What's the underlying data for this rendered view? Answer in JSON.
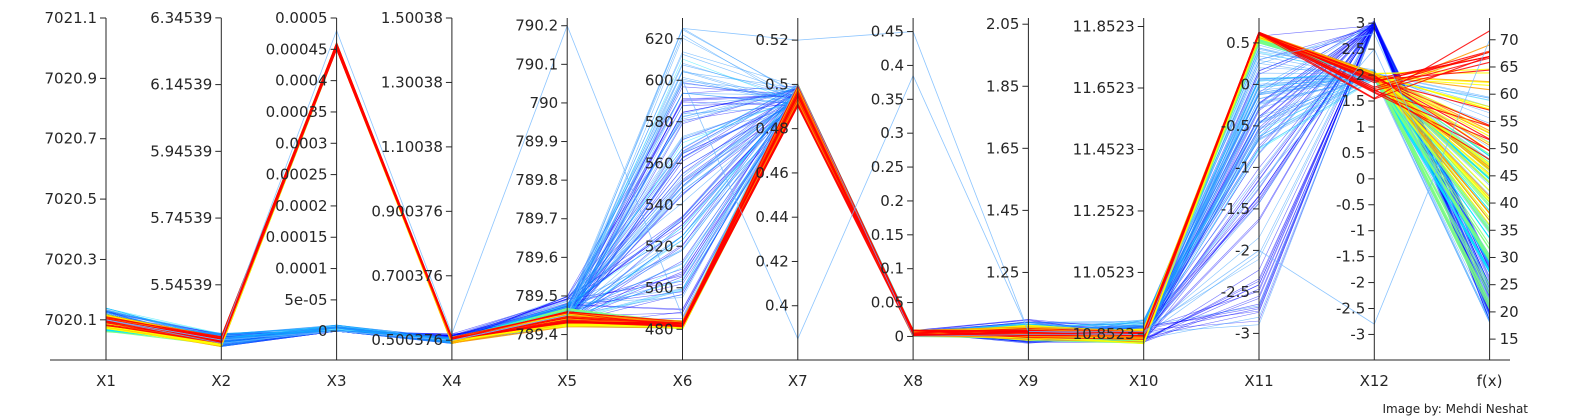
{
  "chart_data": {
    "type": "parallel-coordinates",
    "title": "",
    "axes": [
      {
        "name": "X1",
        "ticks": [
          "7020.1",
          "7020.3",
          "7020.5",
          "7020.7",
          "7020.9",
          "7021.1"
        ],
        "tick_values": [
          7020.1,
          7020.3,
          7020.5,
          7020.7,
          7020.9,
          7021.1
        ],
        "range": [
          7020.0,
          7021.1
        ]
      },
      {
        "name": "X2",
        "ticks": [
          "5.54539",
          "5.74539",
          "5.94539",
          "6.14539",
          "6.34539"
        ],
        "tick_values": [
          5.54539,
          5.74539,
          5.94539,
          6.14539,
          6.34539
        ],
        "range": [
          5.35,
          6.345
        ]
      },
      {
        "name": "X3",
        "ticks": [
          "0",
          "5e-05",
          "0.0001",
          "0.00015",
          "0.0002",
          "0.00025",
          "0.0003",
          "0.00035",
          "0.0004",
          "0.00045",
          "0.0005"
        ],
        "tick_values": [
          0,
          5e-05,
          0.0001,
          0.00015,
          0.0002,
          0.00025,
          0.0003,
          0.00035,
          0.0004,
          0.00045,
          0.0005
        ],
        "range": [
          -3e-05,
          0.0005
        ]
      },
      {
        "name": "X4",
        "ticks": [
          "0.500376",
          "0.700376",
          "0.900376",
          "1.10038",
          "1.30038",
          "1.50038"
        ],
        "tick_values": [
          0.500376,
          0.700376,
          0.900376,
          1.10038,
          1.30038,
          1.50038
        ],
        "range": [
          0.47,
          1.50038
        ]
      },
      {
        "name": "X5",
        "ticks": [
          "789.4",
          "789.5",
          "789.6",
          "789.7",
          "789.8",
          "789.9",
          "790",
          "790.1",
          "790.2"
        ],
        "tick_values": [
          789.4,
          789.5,
          789.6,
          789.7,
          789.8,
          789.9,
          790,
          790.1,
          790.2
        ],
        "range": [
          789.36,
          790.22
        ]
      },
      {
        "name": "X6",
        "ticks": [
          "480",
          "500",
          "520",
          "540",
          "560",
          "580",
          "600",
          "620"
        ],
        "tick_values": [
          480,
          500,
          520,
          540,
          560,
          580,
          600,
          620
        ],
        "range": [
          470,
          630
        ]
      },
      {
        "name": "X7",
        "ticks": [
          "0.4",
          "0.42",
          "0.44",
          "0.46",
          "0.48",
          "0.5",
          "0.52"
        ],
        "tick_values": [
          0.4,
          0.42,
          0.44,
          0.46,
          0.48,
          0.5,
          0.52
        ],
        "range": [
          0.38,
          0.53
        ]
      },
      {
        "name": "X8",
        "ticks": [
          "0",
          "0.05",
          "0.1",
          "0.15",
          "0.2",
          "0.25",
          "0.3",
          "0.35",
          "0.4",
          "0.45"
        ],
        "tick_values": [
          0,
          0.05,
          0.1,
          0.15,
          0.2,
          0.25,
          0.3,
          0.35,
          0.4,
          0.45
        ],
        "range": [
          -0.02,
          0.47
        ]
      },
      {
        "name": "X9",
        "ticks": [
          "1.25",
          "1.45",
          "1.65",
          "1.85",
          "2.05"
        ],
        "tick_values": [
          1.25,
          1.45,
          1.65,
          1.85,
          2.05
        ],
        "range": [
          1.0,
          2.07
        ]
      },
      {
        "name": "X10",
        "ticks": [
          "10.8523",
          "11.0523",
          "11.2523",
          "11.4523",
          "11.6523",
          "11.8523"
        ],
        "tick_values": [
          10.8523,
          11.0523,
          11.2523,
          11.4523,
          11.6523,
          11.8523
        ],
        "range": [
          10.8,
          11.88
        ]
      },
      {
        "name": "X11",
        "ticks": [
          "-3",
          "-2.5",
          "-2",
          "-1.5",
          "-1",
          "-0.5",
          "0",
          "0.5"
        ],
        "tick_values": [
          -3,
          -2.5,
          -2,
          -1.5,
          -1,
          -0.5,
          0,
          0.5
        ],
        "range": [
          -3.2,
          0.8
        ]
      },
      {
        "name": "X12",
        "ticks": [
          "-3",
          "-2.5",
          "-2",
          "-1.5",
          "-1",
          "-0.5",
          "0",
          "0.5",
          "1",
          "1.5",
          "2",
          "2.5",
          "3"
        ],
        "tick_values": [
          -3,
          -2.5,
          -2,
          -1.5,
          -1,
          -0.5,
          0,
          0.5,
          1,
          1.5,
          2,
          2.5,
          3
        ],
        "range": [
          -3.3,
          3.1
        ]
      },
      {
        "name": "f(x)",
        "ticks": [
          "15",
          "20",
          "25",
          "30",
          "35",
          "40",
          "45",
          "50",
          "55",
          "60",
          "65",
          "70"
        ],
        "tick_values": [
          15,
          20,
          25,
          30,
          35,
          40,
          45,
          50,
          55,
          60,
          65,
          70
        ],
        "range": [
          13,
          74
        ]
      }
    ],
    "colormap": [
      "#0000ff",
      "#1e90ff",
      "#00e5ff",
      "#7fff7f",
      "#ffff00",
      "#ff9900",
      "#ff0000"
    ],
    "credit": "Image by: Mehdi Neshat"
  }
}
